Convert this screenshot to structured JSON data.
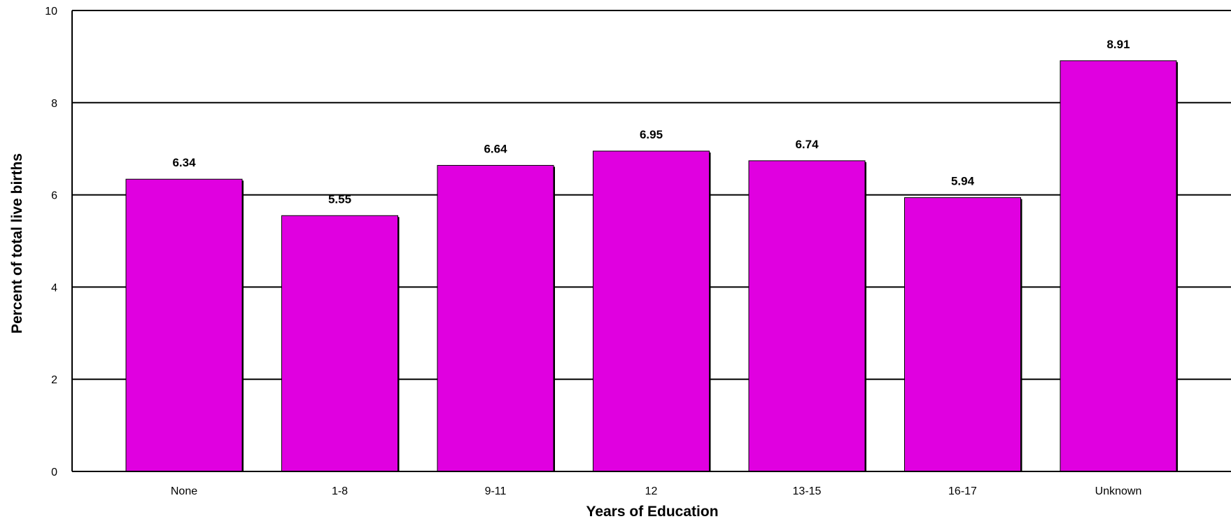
{
  "chart_data": {
    "type": "bar",
    "categories": [
      "None",
      "1-8",
      "9-11",
      "12",
      "13-15",
      "16-17",
      "Unknown"
    ],
    "values": [
      6.34,
      5.55,
      6.64,
      6.95,
      6.74,
      5.94,
      8.91
    ],
    "value_labels": [
      "6.34",
      "5.55",
      "6.64",
      "6.95",
      "6.74",
      "5.94",
      "8.91"
    ],
    "xlabel": "Years of Education",
    "ylabel": "Percent of total live births",
    "ylim": [
      0,
      10
    ],
    "yticks": [
      0,
      2,
      4,
      6,
      8,
      10
    ],
    "ytick_labels": [
      "0",
      "2",
      "4",
      "6",
      "8",
      "10"
    ],
    "grid": true,
    "bar_color": "#e000e0",
    "edge_color": "#000000"
  }
}
